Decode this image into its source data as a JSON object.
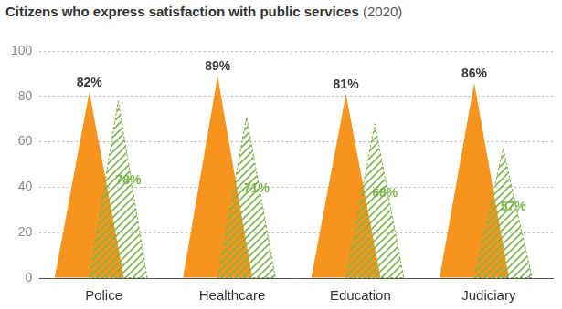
{
  "chart_data": {
    "type": "bar",
    "title": "Citizens who express satisfaction with public services (2020)",
    "categories": [
      "Police",
      "Healthcare",
      "Education",
      "Judiciary"
    ],
    "series": [
      {
        "color": "#f7941d",
        "values": [
          82,
          89,
          81,
          86
        ],
        "value_labels": [
          "82%",
          "89%",
          "81%",
          "86%"
        ]
      },
      {
        "color": "#7ab648",
        "values": [
          78,
          71,
          68,
          57
        ],
        "value_labels": [
          "78%",
          "71%",
          "68%",
          "57%"
        ]
      }
    ],
    "ylim": [
      0,
      100
    ],
    "yticks": [
      0,
      20,
      40,
      60,
      80,
      100
    ],
    "grid": true,
    "data_labels": true
  }
}
